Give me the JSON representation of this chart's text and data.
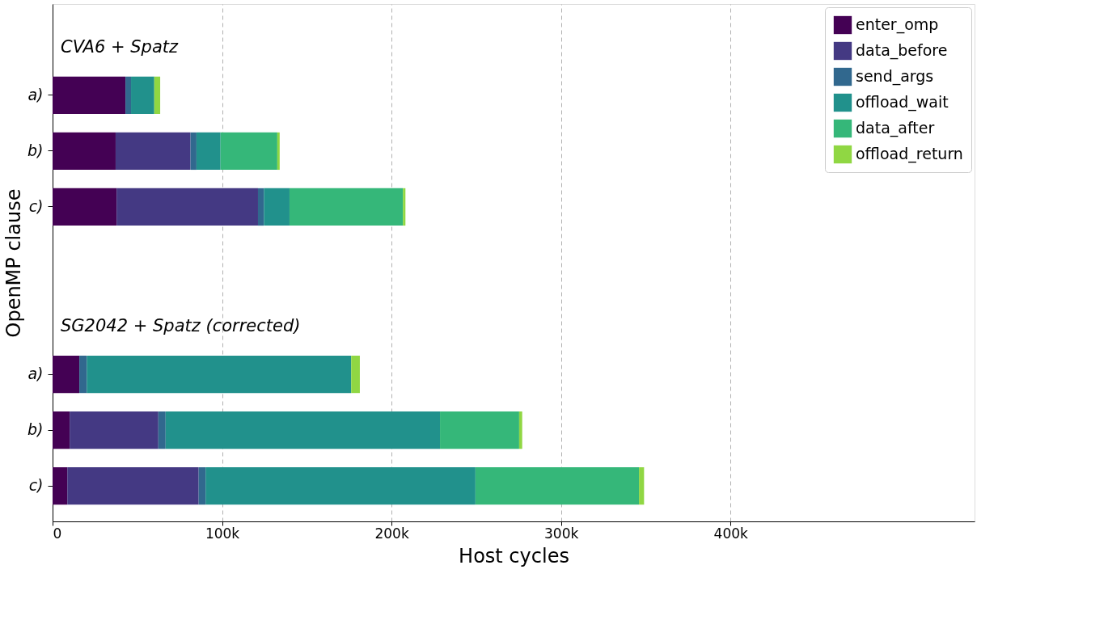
{
  "chart_data": {
    "type": "bar",
    "orientation": "horizontal",
    "stacked": true,
    "xlabel": "Host cycles",
    "ylabel": "OpenMP clause",
    "categories": [
      null,
      "a)",
      "b)",
      "c)",
      null,
      null,
      "a)",
      "b)",
      "c)"
    ],
    "annotations": [
      "CVA6 + Spatz",
      "SG2042 + Spatz (corrected)"
    ],
    "series": [
      {
        "name": "enter_omp",
        "color": "#440154",
        "values": [
          null,
          43000,
          37200,
          37800,
          null,
          null,
          15800,
          10100,
          8700
        ]
      },
      {
        "name": "data_before",
        "color": "#443983",
        "values": [
          null,
          0,
          44200,
          83400,
          null,
          null,
          0,
          52300,
          77500
        ]
      },
      {
        "name": "send_args",
        "color": "#31688e",
        "values": [
          null,
          3300,
          3500,
          3500,
          null,
          null,
          4400,
          4300,
          4100
        ]
      },
      {
        "name": "offload_wait",
        "color": "#21918c",
        "values": [
          null,
          13700,
          14200,
          15100,
          null,
          null,
          156000,
          161900,
          159200
        ]
      },
      {
        "name": "data_after",
        "color": "#35b779",
        "values": [
          null,
          0,
          33500,
          66900,
          null,
          null,
          0,
          46700,
          96500
        ]
      },
      {
        "name": "offload_return",
        "color": "#90d743",
        "values": [
          null,
          3500,
          1400,
          1500,
          null,
          null,
          5100,
          1800,
          3000
        ]
      }
    ],
    "xlim": [
      0,
      544000
    ],
    "xticks": [
      0,
      {
        "value": 100000,
        "label": "100k"
      },
      {
        "value": 200000,
        "label": "200k"
      },
      {
        "value": 300000,
        "label": "300k"
      },
      {
        "value": 400000,
        "label": "400k"
      }
    ],
    "grid": "x",
    "legend": "top right"
  }
}
